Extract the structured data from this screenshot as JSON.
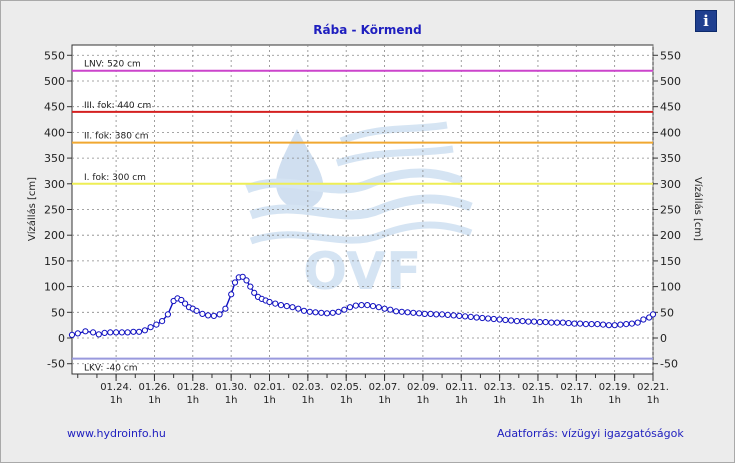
{
  "title": "Rába - Körmend",
  "info_icon": "info-icon",
  "footer": {
    "left": "www.hydroinfo.hu",
    "right": "Adatforrás: vízügyi igazgatóságok"
  },
  "chart_data": {
    "type": "line",
    "title": "Rába - Körmend",
    "ylabel": "Vízállás [cm]",
    "ylabel_right": "Vízállás [cm]",
    "ylim": [
      -70,
      570
    ],
    "yticks": [
      -50,
      0,
      50,
      100,
      150,
      200,
      250,
      300,
      350,
      400,
      450,
      500,
      550
    ],
    "xlim": [
      -1.3,
      29.0
    ],
    "x_tick_positions": [
      1,
      3,
      5,
      7,
      9,
      11,
      13,
      15,
      17,
      19,
      21,
      23,
      25,
      27,
      29
    ],
    "x_tick_dates": [
      "01.24.",
      "01.26.",
      "01.28.",
      "01.30.",
      "02.01.",
      "02.03.",
      "02.05.",
      "02.07.",
      "02.09.",
      "02.11.",
      "02.13.",
      "02.15.",
      "02.17.",
      "02.19.",
      "02.21."
    ],
    "x_tick_sublabel": "1h",
    "grid": true,
    "thresholds": [
      {
        "label": "LNV: 520 cm",
        "value": 520,
        "color": "#cc44cc"
      },
      {
        "label": "III. fok: 440 cm",
        "value": 440,
        "color": "#d42020"
      },
      {
        "label": "II. fok: 380 cm",
        "value": 380,
        "color": "#f0a830"
      },
      {
        "label": "I. fok: 300 cm",
        "value": 300,
        "color": "#eeee55"
      },
      {
        "label": "LKV: -40 cm",
        "value": -40,
        "color": "#9999dd"
      }
    ],
    "series": [
      {
        "color": "#1010c0",
        "x": [
          -1.3,
          -1.0,
          -0.6,
          -0.2,
          0.1,
          0.4,
          0.7,
          1.0,
          1.3,
          1.6,
          1.9,
          2.2,
          2.5,
          2.8,
          3.1,
          3.4,
          3.7,
          4.0,
          4.2,
          4.4,
          4.6,
          4.8,
          5.0,
          5.2,
          5.5,
          5.8,
          6.1,
          6.4,
          6.7,
          7.0,
          7.2,
          7.4,
          7.6,
          7.8,
          8.0,
          8.2,
          8.4,
          8.6,
          8.8,
          9.0,
          9.3,
          9.6,
          9.9,
          10.2,
          10.5,
          10.8,
          11.1,
          11.4,
          11.7,
          12.0,
          12.3,
          12.6,
          12.9,
          13.2,
          13.5,
          13.8,
          14.1,
          14.4,
          14.7,
          15.0,
          15.3,
          15.6,
          15.9,
          16.2,
          16.5,
          16.8,
          17.1,
          17.4,
          17.7,
          18.0,
          18.3,
          18.6,
          18.9,
          19.2,
          19.5,
          19.8,
          20.1,
          20.4,
          20.7,
          21.0,
          21.3,
          21.6,
          21.9,
          22.2,
          22.5,
          22.8,
          23.1,
          23.4,
          23.7,
          24.0,
          24.3,
          24.6,
          24.9,
          25.2,
          25.5,
          25.8,
          26.1,
          26.4,
          26.7,
          27.0,
          27.3,
          27.6,
          27.9,
          28.2,
          28.5,
          28.8,
          29.0
        ],
        "values": [
          6,
          9,
          13,
          11,
          7,
          10,
          11,
          11,
          11,
          11,
          12,
          12,
          15,
          21,
          26,
          33,
          46,
          72,
          77,
          74,
          67,
          60,
          57,
          53,
          47,
          44,
          43,
          46,
          57,
          85,
          108,
          118,
          119,
          112,
          100,
          88,
          80,
          76,
          73,
          70,
          67,
          64,
          62,
          60,
          57,
          53,
          51,
          50,
          49,
          48,
          49,
          51,
          55,
          60,
          63,
          64,
          64,
          62,
          60,
          57,
          55,
          52,
          51,
          50,
          49,
          48,
          47,
          47,
          46,
          46,
          45,
          44,
          43,
          42,
          41,
          40,
          39,
          38,
          37,
          36,
          35,
          34,
          33,
          33,
          32,
          32,
          31,
          31,
          30,
          30,
          30,
          29,
          28,
          28,
          27,
          27,
          27,
          26,
          25,
          25,
          26,
          27,
          28,
          30,
          36,
          40,
          46
        ]
      }
    ]
  }
}
